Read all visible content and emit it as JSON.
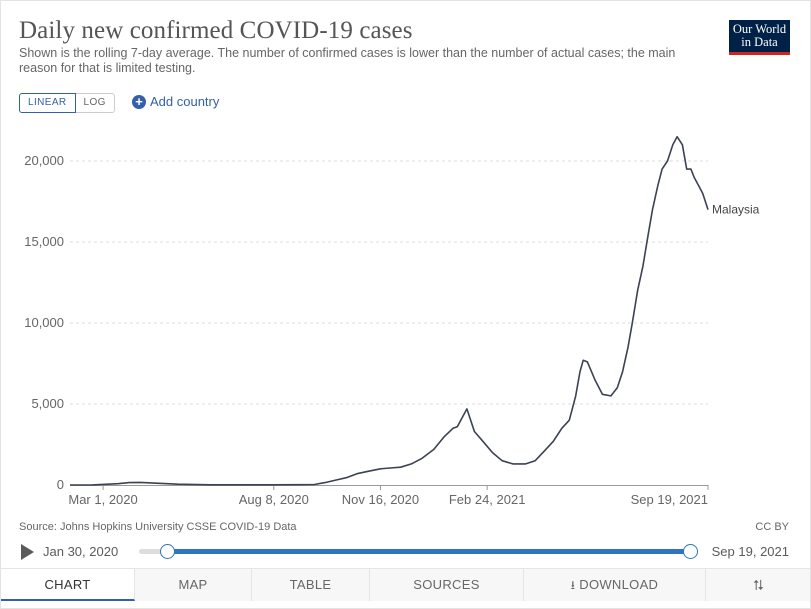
{
  "title": "Daily new confirmed COVID-19 cases",
  "subtitle": "Shown is the rolling 7-day average. The number of confirmed cases is lower than the number of actual cases; the main reason for that is limited testing.",
  "logo": {
    "line1": "Our World",
    "line2": "in Data",
    "bg_color": "#002147",
    "accent_color": "#ce261e"
  },
  "scale_toggle": {
    "linear": "LINEAR",
    "log": "LOG",
    "selected": "LINEAR"
  },
  "add_country_label": "Add country",
  "source": "Source: Johns Hopkins University CSSE COVID-19 Data",
  "license": "CC BY",
  "timeline": {
    "start": "Jan 30, 2020",
    "end": "Sep 19, 2021"
  },
  "tabs": [
    "CHART",
    "MAP",
    "TABLE",
    "SOURCES",
    "DOWNLOAD"
  ],
  "active_tab": "CHART",
  "icons": {
    "play": "play-icon",
    "add": "plus-circle-icon",
    "download": "download-icon",
    "share": "share-icon"
  },
  "colors": {
    "accent": "#3360a9",
    "line": "#3b4252",
    "grid": "#dddddd"
  },
  "chart_data": {
    "type": "line",
    "title": "Daily new confirmed COVID-19 cases",
    "x_type": "date",
    "x_ticks": [
      "Mar 1, 2020",
      "Aug 8, 2020",
      "Nov 16, 2020",
      "Feb 24, 2021",
      "Sep 19, 2021"
    ],
    "y_ticks": [
      "0",
      "5,000",
      "10,000",
      "15,000",
      "20,000"
    ],
    "ylim": [
      0,
      20000
    ],
    "grid": "horizontal dashed",
    "series": [
      {
        "name": "Malaysia",
        "x": [
          "2020-01-30",
          "2020-02-20",
          "2020-03-15",
          "2020-03-25",
          "2020-04-05",
          "2020-04-20",
          "2020-05-10",
          "2020-06-10",
          "2020-07-10",
          "2020-08-08",
          "2020-09-01",
          "2020-09-15",
          "2020-09-25",
          "2020-10-05",
          "2020-10-15",
          "2020-10-25",
          "2020-11-05",
          "2020-11-16",
          "2020-11-25",
          "2020-12-05",
          "2020-12-15",
          "2020-12-25",
          "2021-01-05",
          "2021-01-15",
          "2021-01-23",
          "2021-01-27",
          "2021-02-05",
          "2021-02-12",
          "2021-02-20",
          "2021-03-01",
          "2021-03-10",
          "2021-03-20",
          "2021-04-01",
          "2021-04-10",
          "2021-04-20",
          "2021-04-27",
          "2021-05-05",
          "2021-05-12",
          "2021-05-18",
          "2021-05-22",
          "2021-05-25",
          "2021-05-29",
          "2021-06-05",
          "2021-06-12",
          "2021-06-20",
          "2021-06-26",
          "2021-07-01",
          "2021-07-06",
          "2021-07-10",
          "2021-07-15",
          "2021-07-20",
          "2021-07-25",
          "2021-07-29",
          "2021-08-03",
          "2021-08-07",
          "2021-08-12",
          "2021-08-17",
          "2021-08-21",
          "2021-08-26",
          "2021-08-30",
          "2021-09-03",
          "2021-09-06",
          "2021-09-10",
          "2021-09-14",
          "2021-09-19"
        ],
        "y": [
          0,
          5,
          80,
          150,
          160,
          110,
          50,
          15,
          10,
          10,
          20,
          30,
          150,
          300,
          450,
          700,
          850,
          1000,
          1050,
          1100,
          1300,
          1650,
          2200,
          3000,
          3500,
          3600,
          4700,
          3300,
          2700,
          2000,
          1500,
          1300,
          1300,
          1500,
          2200,
          2700,
          3500,
          4000,
          5500,
          7000,
          7700,
          7600,
          6500,
          5600,
          5500,
          6000,
          7000,
          8500,
          10000,
          12000,
          13500,
          15500,
          17000,
          18500,
          19500,
          20000,
          21000,
          21500,
          21000,
          19500,
          19500,
          19000,
          18500,
          18000,
          17000
        ]
      }
    ]
  }
}
